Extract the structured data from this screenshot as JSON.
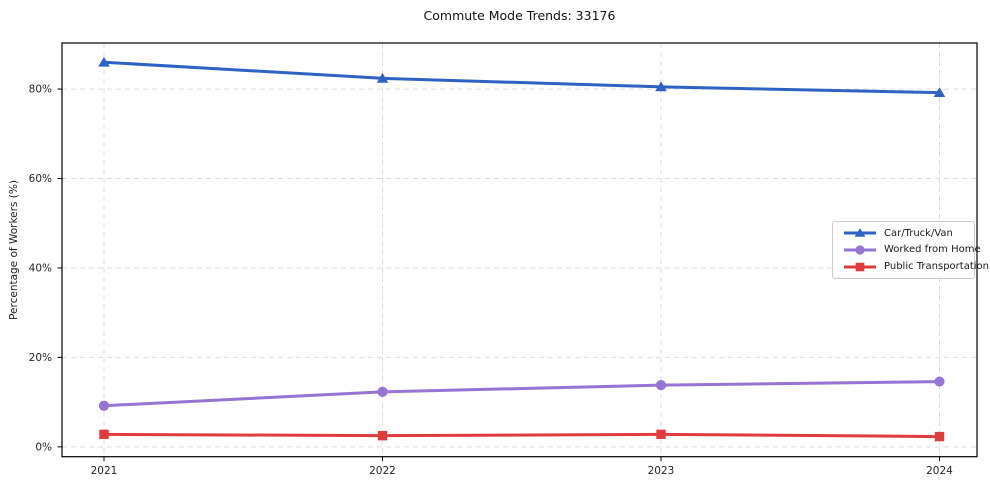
{
  "chart_data": {
    "type": "line",
    "title": "Commute Mode Trends: 33176",
    "xlabel": "",
    "ylabel": "Percentage of Workers (%)",
    "categories": [
      "2021",
      "2022",
      "2023",
      "2024"
    ],
    "series": [
      {
        "name": "Car/Truck/Van",
        "color": "#2e63c3",
        "marker": "triangle",
        "values": [
          86.0,
          82.4,
          80.5,
          79.2
        ]
      },
      {
        "name": "Worked from Home",
        "color": "#9674d4",
        "marker": "circle",
        "values": [
          9.2,
          12.3,
          13.8,
          14.6
        ]
      },
      {
        "name": "Public Transportation",
        "color": "#e03c3c",
        "marker": "square",
        "values": [
          2.8,
          2.5,
          2.8,
          2.3
        ]
      }
    ],
    "yticks": {
      "values": [
        0,
        20,
        40,
        60,
        80
      ],
      "labels": [
        "0%",
        "20%",
        "40%",
        "60%",
        "80%"
      ]
    },
    "ylim": [
      -2.2,
      90.3
    ],
    "grid": true,
    "grid_color": "#dcdcdc",
    "spine_color": "#000000",
    "legend_position": "center right"
  }
}
